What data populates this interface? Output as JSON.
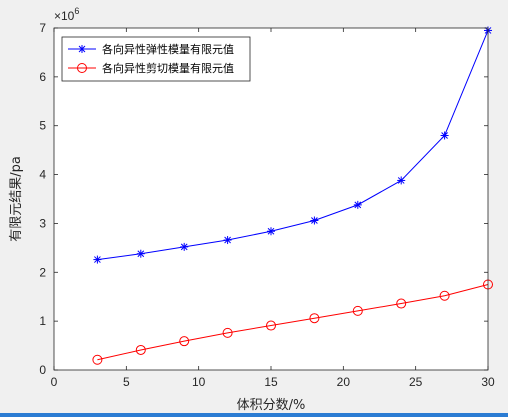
{
  "chart_data": {
    "type": "line",
    "title": "",
    "xlabel": "体积分数/%",
    "ylabel": "有限元结果/pa",
    "xlim": [
      0,
      30
    ],
    "ylim": [
      0,
      7000000
    ],
    "x_ticks": [
      0,
      5,
      10,
      15,
      20,
      25,
      30
    ],
    "y_ticks": [
      0,
      1,
      2,
      3,
      4,
      5,
      6,
      7
    ],
    "y_exponent_label": "×10",
    "y_exponent_value": "6",
    "grid": false,
    "legend_position": "top-left",
    "x": [
      3,
      6,
      9,
      12,
      15,
      18,
      21,
      24,
      27,
      30
    ],
    "series": [
      {
        "name": "各向异性弹性模量有限元值",
        "color": "#0000ff",
        "marker": "asterisk",
        "values": [
          2260000,
          2380000,
          2520000,
          2660000,
          2840000,
          3060000,
          3380000,
          3880000,
          4800000,
          6950000
        ]
      },
      {
        "name": "各向异性剪切模量有限元值",
        "color": "#ff0000",
        "marker": "circle",
        "values": [
          210000,
          410000,
          590000,
          760000,
          910000,
          1060000,
          1210000,
          1360000,
          1520000,
          1750000
        ]
      }
    ]
  }
}
